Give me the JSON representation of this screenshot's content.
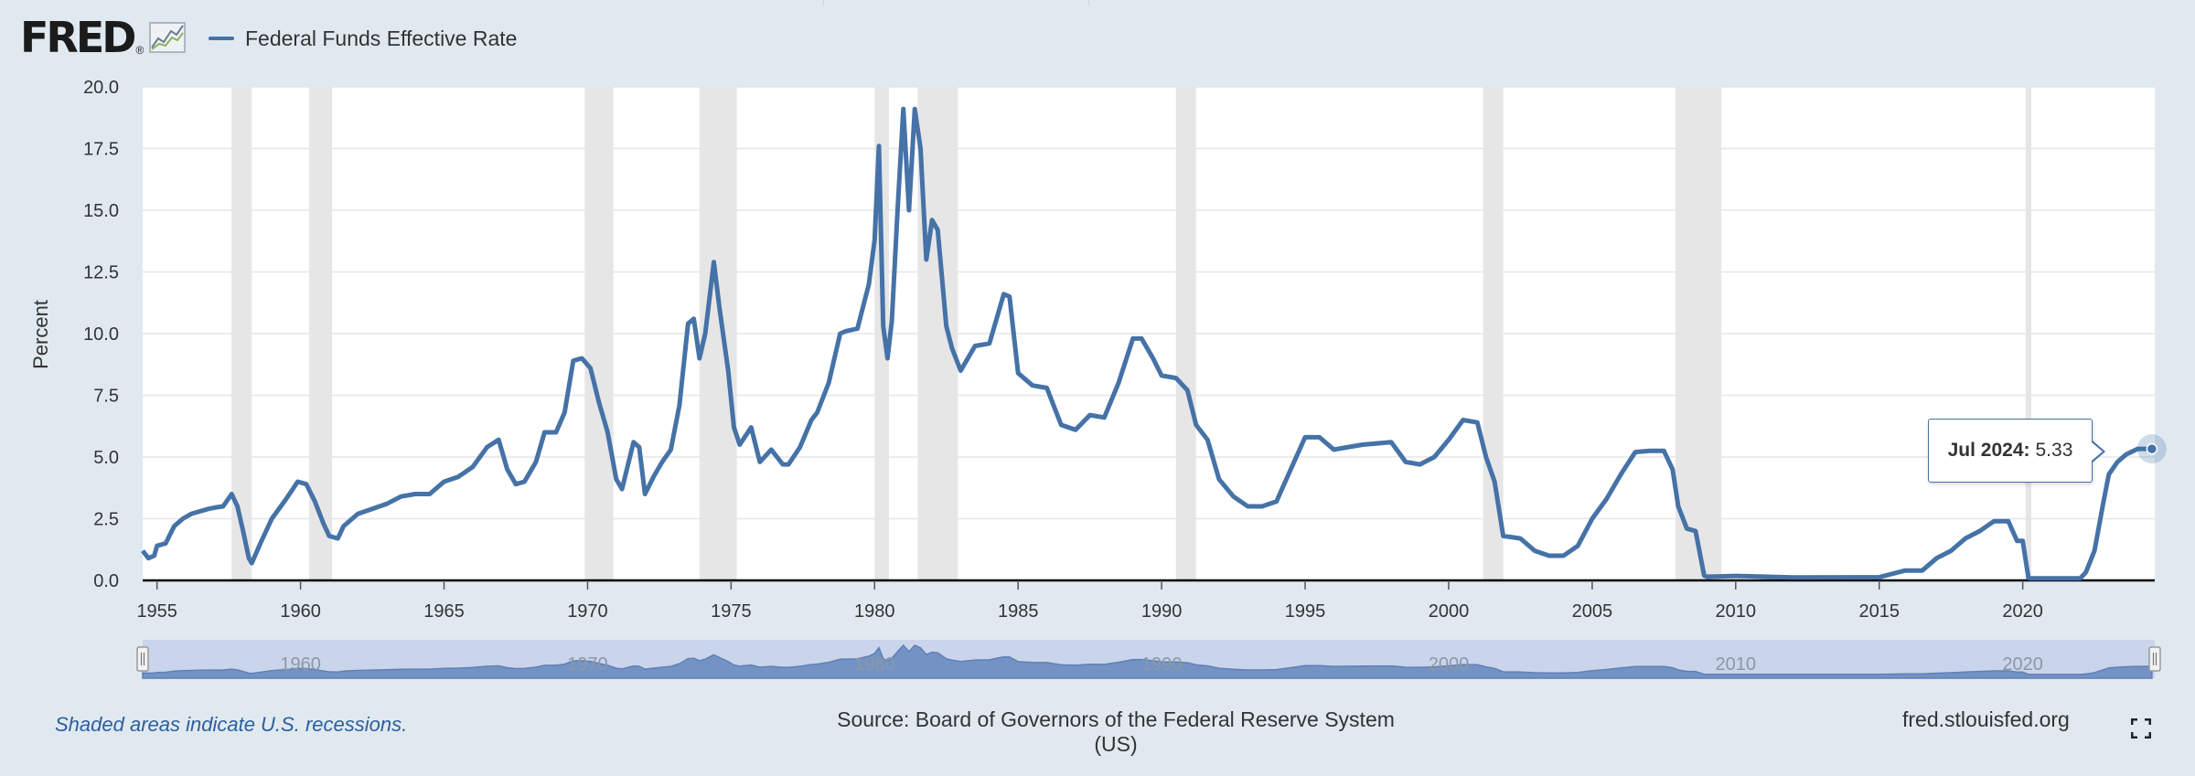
{
  "header": {
    "logo_text": "FRED",
    "logo_mark": "®",
    "legend_label": "Federal Funds Effective Rate"
  },
  "tooltip": {
    "date": "Jul 2024:",
    "value": "5.33"
  },
  "footer": {
    "note": "Shaded areas indicate U.S. recessions.",
    "source": "Source: Board of Governors of the Federal Reserve System (US)",
    "site": "fred.stlouisfed.org"
  },
  "icons": {
    "logo_chart": "fred-chart-icon",
    "fullscreen": "fullscreen-icon"
  },
  "colors": {
    "line": "#4572a7",
    "recession": "#e6e6e6",
    "background": "#e1e9f0",
    "accent_text": "#2b5f9e"
  },
  "chart_data": {
    "type": "line",
    "title": "",
    "ylabel": "Percent",
    "xlabel": "",
    "ylim": [
      0,
      20
    ],
    "xlim": [
      1954.5,
      2024.6
    ],
    "grid": true,
    "y_ticks": [
      "0.0",
      "2.5",
      "5.0",
      "7.5",
      "10.0",
      "12.5",
      "15.0",
      "17.5",
      "20.0"
    ],
    "x_ticks": [
      "1955",
      "1960",
      "1965",
      "1970",
      "1975",
      "1980",
      "1985",
      "1990",
      "1995",
      "2000",
      "2005",
      "2010",
      "2015",
      "2020"
    ],
    "navigator_ticks": [
      "1960",
      "1970",
      "1980",
      "1990",
      "2000",
      "2010",
      "2020"
    ],
    "recessions": [
      [
        1957.6,
        1958.3
      ],
      [
        1960.3,
        1961.1
      ],
      [
        1969.9,
        1970.9
      ],
      [
        1973.9,
        1975.2
      ],
      [
        1980.0,
        1980.5
      ],
      [
        1981.5,
        1982.9
      ],
      [
        1990.5,
        1991.2
      ],
      [
        2001.2,
        2001.9
      ],
      [
        2007.9,
        2009.5
      ],
      [
        2020.1,
        2020.3
      ]
    ],
    "series": [
      {
        "name": "Federal Funds Effective Rate",
        "x": [
          1954.5,
          1954.7,
          1954.9,
          1955.0,
          1955.3,
          1955.6,
          1955.9,
          1956.2,
          1956.5,
          1956.8,
          1957.0,
          1957.3,
          1957.6,
          1957.8,
          1958.0,
          1958.2,
          1958.3,
          1958.6,
          1959.0,
          1959.5,
          1959.9,
          1960.2,
          1960.5,
          1960.8,
          1961.0,
          1961.3,
          1961.5,
          1961.8,
          1962.0,
          1962.5,
          1963.0,
          1963.5,
          1964.0,
          1964.5,
          1965.0,
          1965.5,
          1966.0,
          1966.5,
          1966.9,
          1967.2,
          1967.5,
          1967.8,
          1968.2,
          1968.5,
          1968.9,
          1969.2,
          1969.5,
          1969.8,
          1970.1,
          1970.4,
          1970.7,
          1971.0,
          1971.2,
          1971.6,
          1971.8,
          1972.0,
          1972.3,
          1972.6,
          1972.9,
          1973.2,
          1973.5,
          1973.7,
          1973.9,
          1974.1,
          1974.4,
          1974.6,
          1974.9,
          1975.1,
          1975.3,
          1975.7,
          1976.0,
          1976.4,
          1976.8,
          1977.0,
          1977.4,
          1977.8,
          1978.0,
          1978.4,
          1978.8,
          1979.0,
          1979.4,
          1979.8,
          1980.0,
          1980.15,
          1980.3,
          1980.45,
          1980.6,
          1980.8,
          1981.0,
          1981.2,
          1981.4,
          1981.6,
          1981.8,
          1982.0,
          1982.2,
          1982.5,
          1982.7,
          1983.0,
          1983.5,
          1984.0,
          1984.5,
          1984.7,
          1985.0,
          1985.5,
          1986.0,
          1986.5,
          1987.0,
          1987.5,
          1988.0,
          1988.5,
          1989.0,
          1989.3,
          1989.7,
          1990.0,
          1990.5,
          1990.9,
          1991.2,
          1991.6,
          1992.0,
          1992.5,
          1993.0,
          1993.5,
          1994.0,
          1994.5,
          1995.0,
          1995.5,
          1996.0,
          1997.0,
          1998.0,
          1998.5,
          1999.0,
          1999.5,
          2000.0,
          2000.5,
          2001.0,
          2001.3,
          2001.6,
          2001.9,
          2002.5,
          2003.0,
          2003.5,
          2004.0,
          2004.5,
          2005.0,
          2005.5,
          2006.0,
          2006.5,
          2007.0,
          2007.5,
          2007.8,
          2008.0,
          2008.3,
          2008.6,
          2008.9,
          2009.0,
          2010.0,
          2012.0,
          2015.0,
          2015.9,
          2016.5,
          2017.0,
          2017.5,
          2018.0,
          2018.5,
          2019.0,
          2019.5,
          2019.8,
          2020.0,
          2020.2,
          2020.3,
          2021.0,
          2022.0,
          2022.2,
          2022.5,
          2022.8,
          2023.0,
          2023.3,
          2023.6,
          2024.0,
          2024.5
        ],
        "y": [
          1.2,
          0.9,
          1.0,
          1.4,
          1.5,
          2.2,
          2.5,
          2.7,
          2.8,
          2.9,
          2.95,
          3.0,
          3.5,
          3.0,
          2.0,
          0.9,
          0.7,
          1.5,
          2.5,
          3.3,
          4.0,
          3.9,
          3.2,
          2.3,
          1.8,
          1.7,
          2.2,
          2.5,
          2.7,
          2.9,
          3.1,
          3.4,
          3.5,
          3.5,
          4.0,
          4.2,
          4.6,
          5.4,
          5.7,
          4.5,
          3.9,
          4.0,
          4.8,
          6.0,
          6.0,
          6.8,
          8.9,
          9.0,
          8.6,
          7.2,
          6.0,
          4.1,
          3.7,
          5.6,
          5.4,
          3.5,
          4.2,
          4.8,
          5.3,
          7.1,
          10.4,
          10.6,
          9.0,
          10.0,
          12.9,
          11.0,
          8.5,
          6.2,
          5.5,
          6.2,
          4.8,
          5.3,
          4.7,
          4.7,
          5.4,
          6.5,
          6.8,
          8.0,
          10.0,
          10.1,
          10.2,
          12.0,
          13.8,
          17.6,
          10.3,
          9.0,
          10.5,
          15.0,
          19.1,
          15.0,
          19.1,
          17.5,
          13.0,
          14.6,
          14.2,
          10.3,
          9.4,
          8.5,
          9.5,
          9.6,
          11.6,
          11.5,
          8.4,
          7.9,
          7.8,
          6.3,
          6.1,
          6.7,
          6.6,
          8.0,
          9.8,
          9.8,
          9.0,
          8.3,
          8.2,
          7.7,
          6.3,
          5.7,
          4.1,
          3.4,
          3.0,
          3.0,
          3.2,
          4.5,
          5.8,
          5.8,
          5.3,
          5.5,
          5.6,
          4.8,
          4.7,
          5.0,
          5.7,
          6.5,
          6.4,
          5.0,
          4.0,
          1.8,
          1.7,
          1.2,
          1.0,
          1.0,
          1.4,
          2.5,
          3.3,
          4.3,
          5.2,
          5.25,
          5.25,
          4.5,
          3.0,
          2.1,
          2.0,
          0.2,
          0.15,
          0.18,
          0.12,
          0.13,
          0.4,
          0.4,
          0.9,
          1.2,
          1.7,
          2.0,
          2.4,
          2.4,
          1.6,
          1.6,
          0.1,
          0.08,
          0.08,
          0.08,
          0.33,
          1.2,
          3.1,
          4.3,
          4.8,
          5.1,
          5.33,
          5.33
        ]
      }
    ]
  }
}
